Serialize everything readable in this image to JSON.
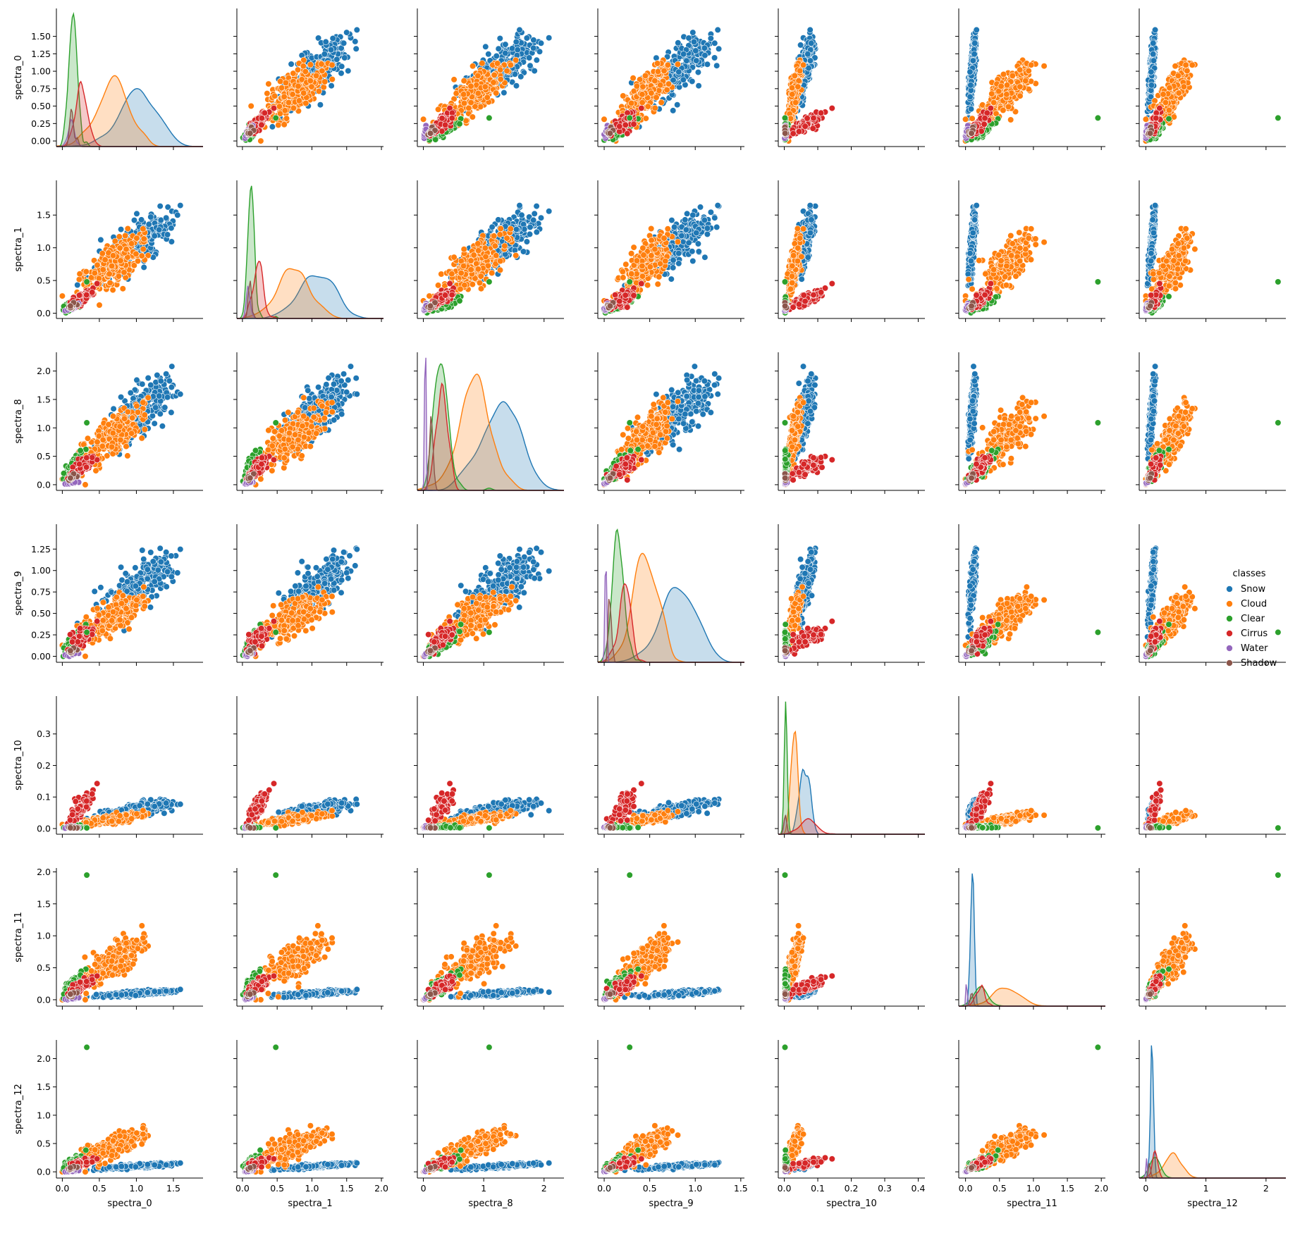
{
  "chart_data": {
    "type": "scatter",
    "subtype": "pairplot",
    "variables": [
      "spectra_0",
      "spectra_1",
      "spectra_8",
      "spectra_9",
      "spectra_10",
      "spectra_11",
      "spectra_12"
    ],
    "axis_ranges": {
      "spectra_0": [
        -0.08,
        1.9
      ],
      "spectra_1": [
        -0.08,
        2.03
      ],
      "spectra_8": [
        -0.1,
        2.33
      ],
      "spectra_9": [
        -0.07,
        1.54
      ],
      "spectra_10": [
        -0.018,
        0.42
      ],
      "spectra_11": [
        -0.1,
        2.06
      ],
      "spectra_12": [
        -0.11,
        2.33
      ]
    },
    "ticks": {
      "spectra_0": [
        0.0,
        0.5,
        1.0,
        1.5
      ],
      "spectra_1": [
        0.0,
        0.5,
        1.0,
        1.5,
        2.0
      ],
      "spectra_8": [
        0,
        1,
        2
      ],
      "spectra_9": [
        0.0,
        0.5,
        1.0,
        1.5
      ],
      "spectra_10": [
        0.0,
        0.1,
        0.2,
        0.3,
        0.4
      ],
      "spectra_11": [
        0.0,
        0.5,
        1.0,
        1.5,
        2.0
      ],
      "spectra_12": [
        0,
        1,
        2
      ]
    },
    "y_ticks_diag_row0": [
      0.0,
      0.25,
      0.5,
      0.75,
      1.0,
      1.25,
      1.5
    ],
    "tick_labels": {
      "x": {
        "spectra_0": [
          "0.0",
          "0.5",
          "1.0",
          "1.5"
        ],
        "spectra_1": [
          "0.0",
          "0.5",
          "1.0",
          "1.5",
          "2.0"
        ],
        "spectra_8": [
          "0",
          "1",
          "2"
        ],
        "spectra_9": [
          "0.0",
          "0.5",
          "1.0",
          "1.5"
        ],
        "spectra_10": [
          "0.0",
          "0.1",
          "0.2",
          "0.3",
          "0.4"
        ],
        "spectra_11": [
          "0.0",
          "0.5",
          "1.0",
          "1.5",
          "2.0"
        ],
        "spectra_12": [
          "0",
          "1",
          "2"
        ]
      },
      "y": {
        "spectra_0": [
          "0.00",
          "0.25",
          "0.50",
          "0.75",
          "1.00",
          "1.25",
          "1.50"
        ],
        "spectra_1": [
          "0.0",
          "0.5",
          "1.0",
          "1.5"
        ],
        "spectra_8": [
          "0.0",
          "0.5",
          "1.0",
          "1.5",
          "2.0"
        ],
        "spectra_9": [
          "0.00",
          "0.25",
          "0.50",
          "0.75",
          "1.00",
          "1.25"
        ],
        "spectra_10": [
          "0.0",
          "0.1",
          "0.2",
          "0.3"
        ],
        "spectra_11": [
          "0.0",
          "0.5",
          "1.0",
          "1.5",
          "2.0"
        ],
        "spectra_12": [
          "0.0",
          "0.5",
          "1.0",
          "1.5",
          "2.0"
        ]
      }
    },
    "y_ticks": {
      "spectra_0": [
        0.0,
        0.25,
        0.5,
        0.75,
        1.0,
        1.25,
        1.5
      ],
      "spectra_1": [
        0.0,
        0.5,
        1.0,
        1.5
      ],
      "spectra_8": [
        0.0,
        0.5,
        1.0,
        1.5,
        2.0
      ],
      "spectra_9": [
        0.0,
        0.25,
        0.5,
        0.75,
        1.0,
        1.25
      ],
      "spectra_10": [
        0.0,
        0.1,
        0.2,
        0.3
      ],
      "spectra_11": [
        0.0,
        0.5,
        1.0,
        1.5,
        2.0
      ],
      "spectra_12": [
        0.0,
        0.5,
        1.0,
        1.5,
        2.0
      ]
    },
    "legend": {
      "title": "classes",
      "placement": "right",
      "entries": [
        {
          "label": "Snow",
          "color": "#1f77b4"
        },
        {
          "label": "Cloud",
          "color": "#ff7f0e"
        },
        {
          "label": "Clear",
          "color": "#2ca02c"
        },
        {
          "label": "Cirrus",
          "color": "#d62728"
        },
        {
          "label": "Water",
          "color": "#9467bd"
        },
        {
          "label": "Shadow",
          "color": "#8c564b"
        }
      ]
    },
    "class_centers": {
      "Snow": {
        "spectra_0": 1.0,
        "spectra_1": 1.05,
        "spectra_8": 1.25,
        "spectra_9": 0.8,
        "spectra_10": 0.06,
        "spectra_11": 0.1,
        "spectra_12": 0.1
      },
      "Cloud": {
        "spectra_0": 0.7,
        "spectra_1": 0.75,
        "spectra_8": 0.85,
        "spectra_9": 0.45,
        "spectra_10": 0.03,
        "spectra_11": 0.6,
        "spectra_12": 0.45
      },
      "Clear": {
        "spectra_0": 0.14,
        "spectra_1": 0.12,
        "spectra_8": 0.28,
        "spectra_9": 0.15,
        "spectra_10": 0.002,
        "spectra_11": 0.22,
        "spectra_12": 0.15
      },
      "Cirrus": {
        "spectra_0": 0.25,
        "spectra_1": 0.22,
        "spectra_8": 0.3,
        "spectra_9": 0.22,
        "spectra_10": 0.07,
        "spectra_11": 0.22,
        "spectra_12": 0.15
      },
      "Water": {
        "spectra_0": 0.13,
        "spectra_1": 0.09,
        "spectra_8": 0.03,
        "spectra_9": 0.02,
        "spectra_10": 0.001,
        "spectra_11": 0.02,
        "spectra_12": 0.01
      },
      "Shadow": {
        "spectra_0": 0.13,
        "spectra_1": 0.1,
        "spectra_8": 0.12,
        "spectra_9": 0.06,
        "spectra_10": 0.001,
        "spectra_11": 0.08,
        "spectra_12": 0.06
      }
    },
    "outlier_clear_point": {
      "spectra_0": 0.33,
      "spectra_1": 0.48,
      "spectra_8": 1.09,
      "spectra_9": 0.28,
      "spectra_10": 0.002,
      "spectra_11": 1.95,
      "spectra_12": 2.2
    },
    "grid": false
  }
}
